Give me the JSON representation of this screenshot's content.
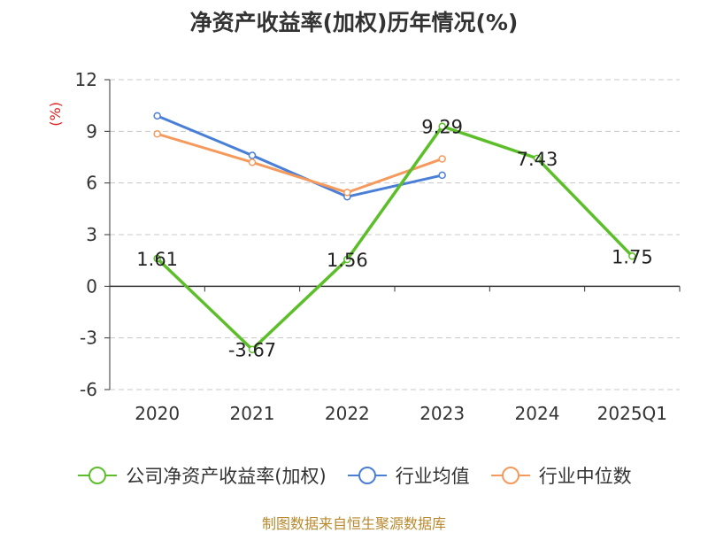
{
  "chart_data": {
    "type": "line",
    "title": "净资产收益率(加权)历年情况(%)",
    "ylabel": "(%)",
    "categories": [
      "2020",
      "2021",
      "2022",
      "2023",
      "2024",
      "2025Q1"
    ],
    "ylim": [
      -6,
      12
    ],
    "yticks": [
      "12",
      "9",
      "6",
      "3",
      "0",
      "-3",
      "-6"
    ],
    "grid": true,
    "legend_position": "bottom",
    "series": [
      {
        "name": "公司净资产收益率(加权)",
        "color": "#5cbf2a",
        "values": [
          1.61,
          -3.67,
          1.56,
          9.29,
          7.43,
          1.75
        ],
        "labels": [
          "1.61",
          "-3.67",
          "1.56",
          "9.29",
          "7.43",
          "1.75"
        ]
      },
      {
        "name": "行业均值",
        "color": "#4a7fd8",
        "values": [
          9.9,
          7.6,
          5.2,
          6.45,
          null,
          null
        ]
      },
      {
        "name": "行业中位数",
        "color": "#f59a5c",
        "values": [
          8.85,
          7.2,
          5.45,
          7.4,
          null,
          null
        ]
      }
    ]
  },
  "source": "制图数据来自恒生聚源数据库"
}
